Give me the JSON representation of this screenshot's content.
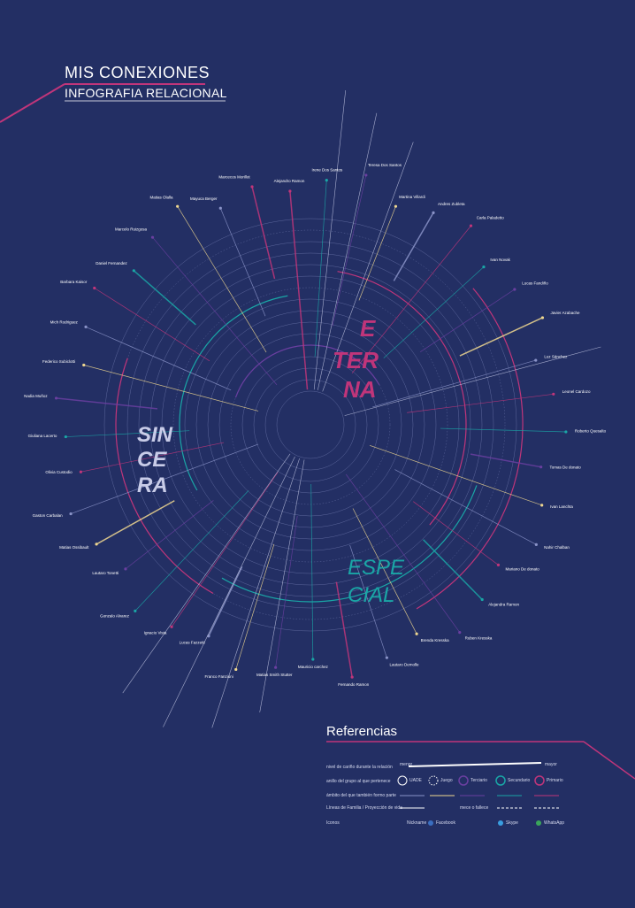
{
  "header": {
    "title": "MIS CONEXIONES",
    "subtitle": "INFOGRAFIA RELACIONAL"
  },
  "colors": {
    "background": "#232f64",
    "magenta": "#c0357a",
    "cyan": "#1aa6a6",
    "purple": "#6a3fa0",
    "yellow": "#f0d890",
    "ring": "#8a93c8",
    "white": "#ffffff"
  },
  "words": {
    "eterna": [
      "E",
      "TER",
      "NA"
    ],
    "sincera": [
      "SIN",
      "CE",
      "RA"
    ],
    "especial": [
      "ESPE",
      "CIAL"
    ]
  },
  "people": [
    "Alejandro Ramon",
    "Irene Dos Santos",
    "Teresa Dos Santos",
    "Martina Villardi",
    "Andres Zubleta",
    "Carla Paladetto",
    "Ivan Novak",
    "Lucas Fandiño",
    "Javier Azabache",
    "Luz Sánchez",
    "Leonel Cardozo",
    "Roberto Quesalto",
    "Tomas De donato",
    "Ivan Lanchta",
    "Nahir Chalban",
    "Mariano De donato",
    "Alejandra Ramon",
    "Ruben Kresska",
    "Brenda Kresska",
    "Lautaro Demolle",
    "Fernando Ramon",
    "Mauricio carchez",
    "Matias Smith Stutter",
    "Franco Fanzioni",
    "Lucas Fazzetti",
    "Ignacio Vista",
    "Gonzalo Alvarez",
    "Lautaro Tonetti",
    "Matias Ossibault",
    "Gaston Carbalan",
    "Olivia Custodio",
    "Giuliana Lacerto",
    "Nadia Muñoz",
    "Federico Subiclotti",
    "Mich Rodriguez",
    "Barbara Kaisor",
    "Daniel Fernandez",
    "Marcelo Ruizgosa",
    "Matias Olalla",
    "Mayuca Berger",
    "Marcecos Morillot"
  ],
  "references": {
    "title": "Referencias",
    "rows": [
      "nivel de cariño durante la relación",
      "anillo del grupo al que pertenece",
      "ámbito del que también formo parte",
      "Líneas de Familia / Proyección de vida",
      "Iconos"
    ],
    "scale_min": "menor",
    "scale_max": "mayor",
    "rings": [
      "UADE",
      "Juego",
      "Terciario",
      "Secundario",
      "Primario"
    ],
    "dash_label": "mece o fallece",
    "icons": [
      "Nickname",
      "Facebook",
      "Skype",
      "WhatsApp"
    ]
  }
}
